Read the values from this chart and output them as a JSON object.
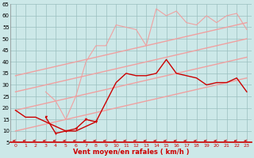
{
  "x": [
    0,
    1,
    2,
    3,
    4,
    5,
    6,
    7,
    8,
    9,
    10,
    11,
    12,
    13,
    14,
    15,
    16,
    17,
    18,
    19,
    20,
    21,
    22,
    23
  ],
  "line_reg_top": [
    34,
    35,
    36,
    37,
    38,
    39,
    40,
    41,
    42,
    43,
    44,
    45,
    46,
    47,
    48,
    49,
    50,
    51,
    52,
    53,
    54,
    55,
    56,
    57
  ],
  "line_reg_mid": [
    27,
    28,
    29,
    30,
    31,
    32,
    33,
    34,
    35,
    36,
    37,
    38,
    39,
    40,
    41,
    42,
    43,
    44,
    45,
    46,
    47,
    48,
    49,
    50
  ],
  "line_reg_bot": [
    19,
    20,
    21,
    22,
    23,
    24,
    25,
    26,
    27,
    28,
    29,
    30,
    31,
    32,
    33,
    34,
    35,
    36,
    37,
    38,
    39,
    40,
    41,
    42
  ],
  "line_reg_low": [
    10,
    11,
    12,
    13,
    14,
    15,
    16,
    17,
    18,
    19,
    20,
    21,
    22,
    23,
    24,
    25,
    26,
    27,
    28,
    29,
    30,
    31,
    32,
    33
  ],
  "line_data_pink": [
    null,
    null,
    null,
    27,
    23,
    15,
    25,
    40,
    47,
    47,
    56,
    55,
    54,
    47,
    63,
    60,
    62,
    57,
    56,
    60,
    57,
    60,
    61,
    54
  ],
  "line_data_dark": [
    19,
    16,
    16,
    null,
    null,
    10,
    10,
    null,
    14,
    null,
    31,
    35,
    34,
    34,
    35,
    41,
    35,
    34,
    33,
    30,
    31,
    31,
    33,
    27
  ],
  "line_data_dark2": [
    null,
    null,
    null,
    16,
    9,
    10,
    11,
    15,
    14,
    null,
    null,
    null,
    null,
    null,
    null,
    null,
    null,
    null,
    null,
    null,
    null,
    null,
    null,
    null
  ],
  "background_color": "#cce8e8",
  "grid_color": "#9bbfbf",
  "line_color_dark": "#cc0000",
  "line_color_mid": "#dd3333",
  "line_color_light": "#f0a0a0",
  "xlabel": "Vent moyen/en rafales ( km/h )",
  "ylim": [
    5,
    65
  ],
  "xlim": [
    -0.5,
    23.5
  ],
  "yticks": [
    5,
    10,
    15,
    20,
    25,
    30,
    35,
    40,
    45,
    50,
    55,
    60,
    65
  ],
  "xticks": [
    0,
    1,
    2,
    3,
    4,
    5,
    6,
    7,
    8,
    9,
    10,
    11,
    12,
    13,
    14,
    15,
    16,
    17,
    18,
    19,
    20,
    21,
    22,
    23
  ]
}
